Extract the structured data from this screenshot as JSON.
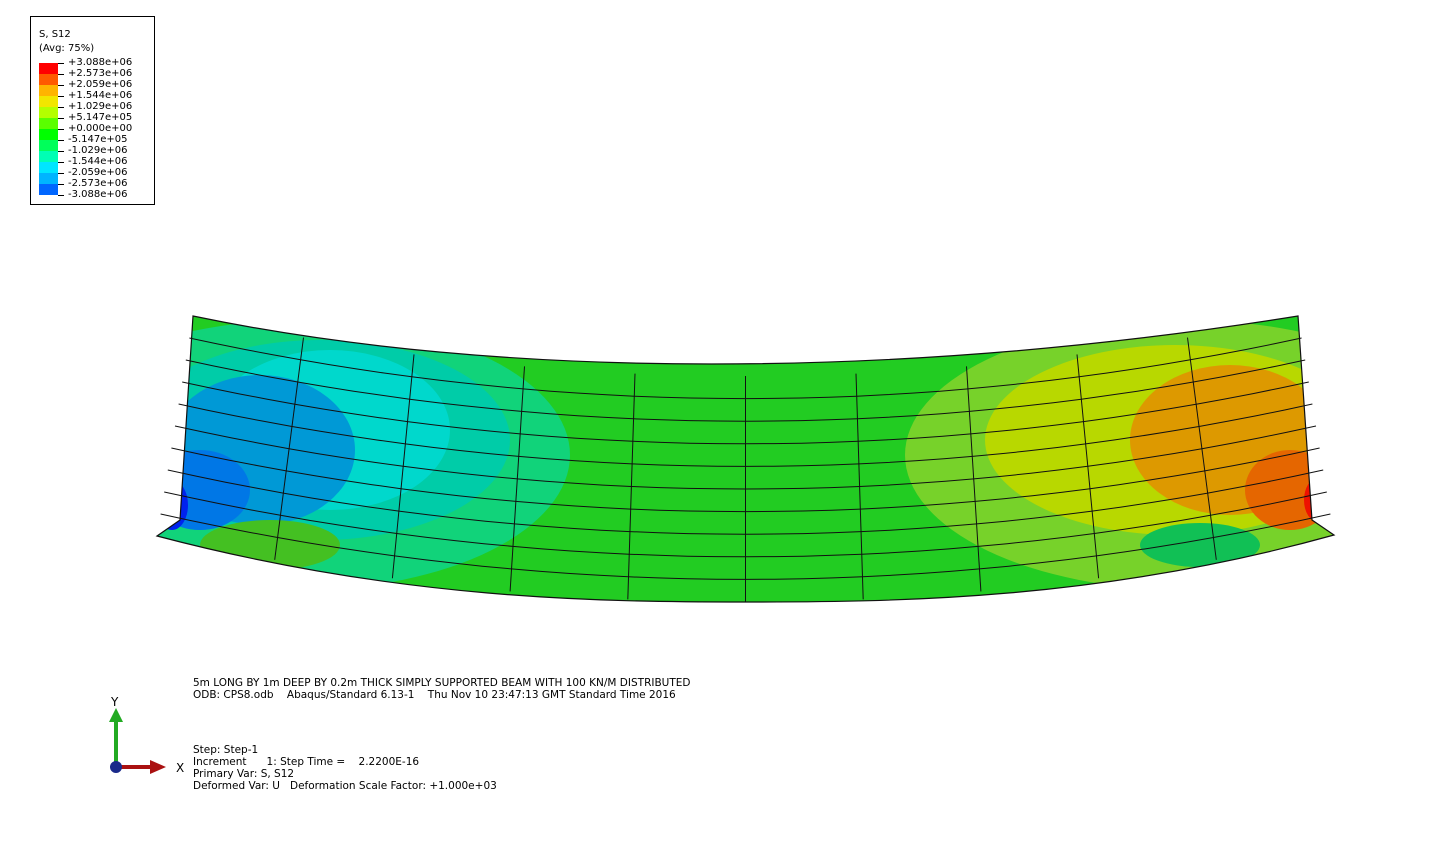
{
  "legend": {
    "title": "S, S12",
    "subtitle": "(Avg: 75%)",
    "labels": [
      "+3.088e+06",
      "+2.573e+06",
      "+2.059e+06",
      "+1.544e+06",
      "+1.029e+06",
      "+5.147e+05",
      "+0.000e+00",
      "-5.147e+05",
      "-1.029e+06",
      "-1.544e+06",
      "-2.059e+06",
      "-2.573e+06",
      "-3.088e+06"
    ],
    "colors": [
      "#ff0000",
      "#ff5a00",
      "#ffb400",
      "#f2e600",
      "#b4ff00",
      "#5aff00",
      "#00ff00",
      "#00ff5a",
      "#00ffb4",
      "#00e6ff",
      "#00b4ff",
      "#0066ff",
      "#0000ff"
    ]
  },
  "info": {
    "title_line": "5m LONG BY 1m DEEP BY 0.2m THICK SIMPLY SUPPORTED BEAM WITH 100 KN/M DISTRIBUTED",
    "odb_line": "ODB: CPS8.odb    Abaqus/Standard 6.13-1    Thu Nov 10 23:47:13 GMT Standard Time 2016",
    "step_line": "Step: Step-1",
    "increment_line": "Increment      1: Step Time =    2.2200E-16",
    "primary_line": "Primary Var: S, S12",
    "deformed_line": "Deformed Var: U   Deformation Scale Factor: +1.000e+03"
  },
  "triad": {
    "y_label": "Y",
    "x_label": "X"
  }
}
